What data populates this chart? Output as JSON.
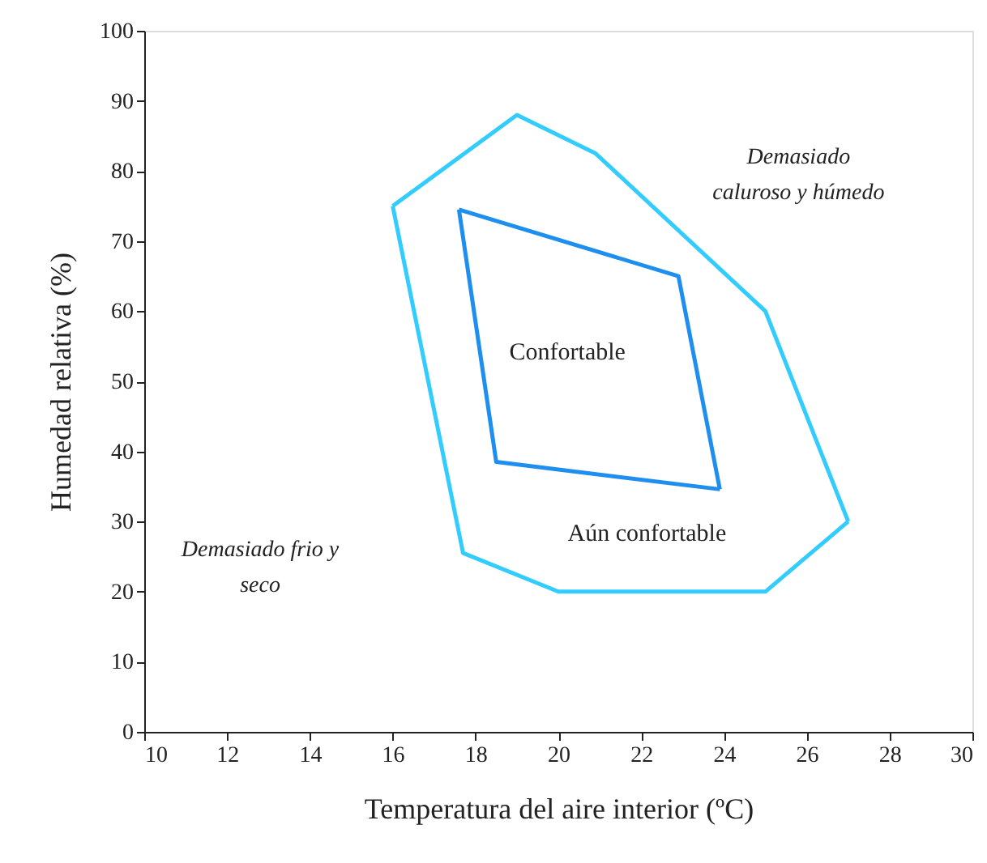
{
  "chart_data": {
    "type": "line",
    "xlabel": "Temperatura del aire interior (ºC)",
    "ylabel": "Humedad relativa (%)",
    "xlim": [
      10,
      30
    ],
    "xticks": [
      10,
      12,
      14,
      16,
      18,
      20,
      22,
      24,
      26,
      28,
      30
    ],
    "ylim": [
      0,
      100
    ],
    "yticks": [
      0,
      10,
      20,
      30,
      40,
      50,
      60,
      70,
      80,
      90,
      100
    ],
    "grid": false,
    "marker": "none",
    "line_style": "solid",
    "series": [
      {
        "color": "#33ccff",
        "x": [
          16,
          19,
          20.9,
          25,
          27
        ],
        "values": [
          75,
          88,
          82.5,
          60,
          30
        ]
      },
      {
        "color": "#33ccff",
        "x": [
          16,
          17.7,
          20,
          25,
          27
        ],
        "values": [
          75,
          25.5,
          20,
          20,
          30
        ]
      },
      {
        "color": "#1e8fef",
        "x": [
          17.6,
          22.9,
          23.9
        ],
        "values": [
          74.5,
          65,
          34.6
        ]
      },
      {
        "color": "#1e8fef",
        "x": [
          17.6,
          18.5,
          23.9
        ],
        "values": [
          74.5,
          38.5,
          34.6
        ]
      }
    ],
    "annotations": [
      "Confortable",
      "Aún confortable",
      "Demasiado\ncaluroso y húmedo",
      "Demasiado frio y\nseco"
    ]
  }
}
